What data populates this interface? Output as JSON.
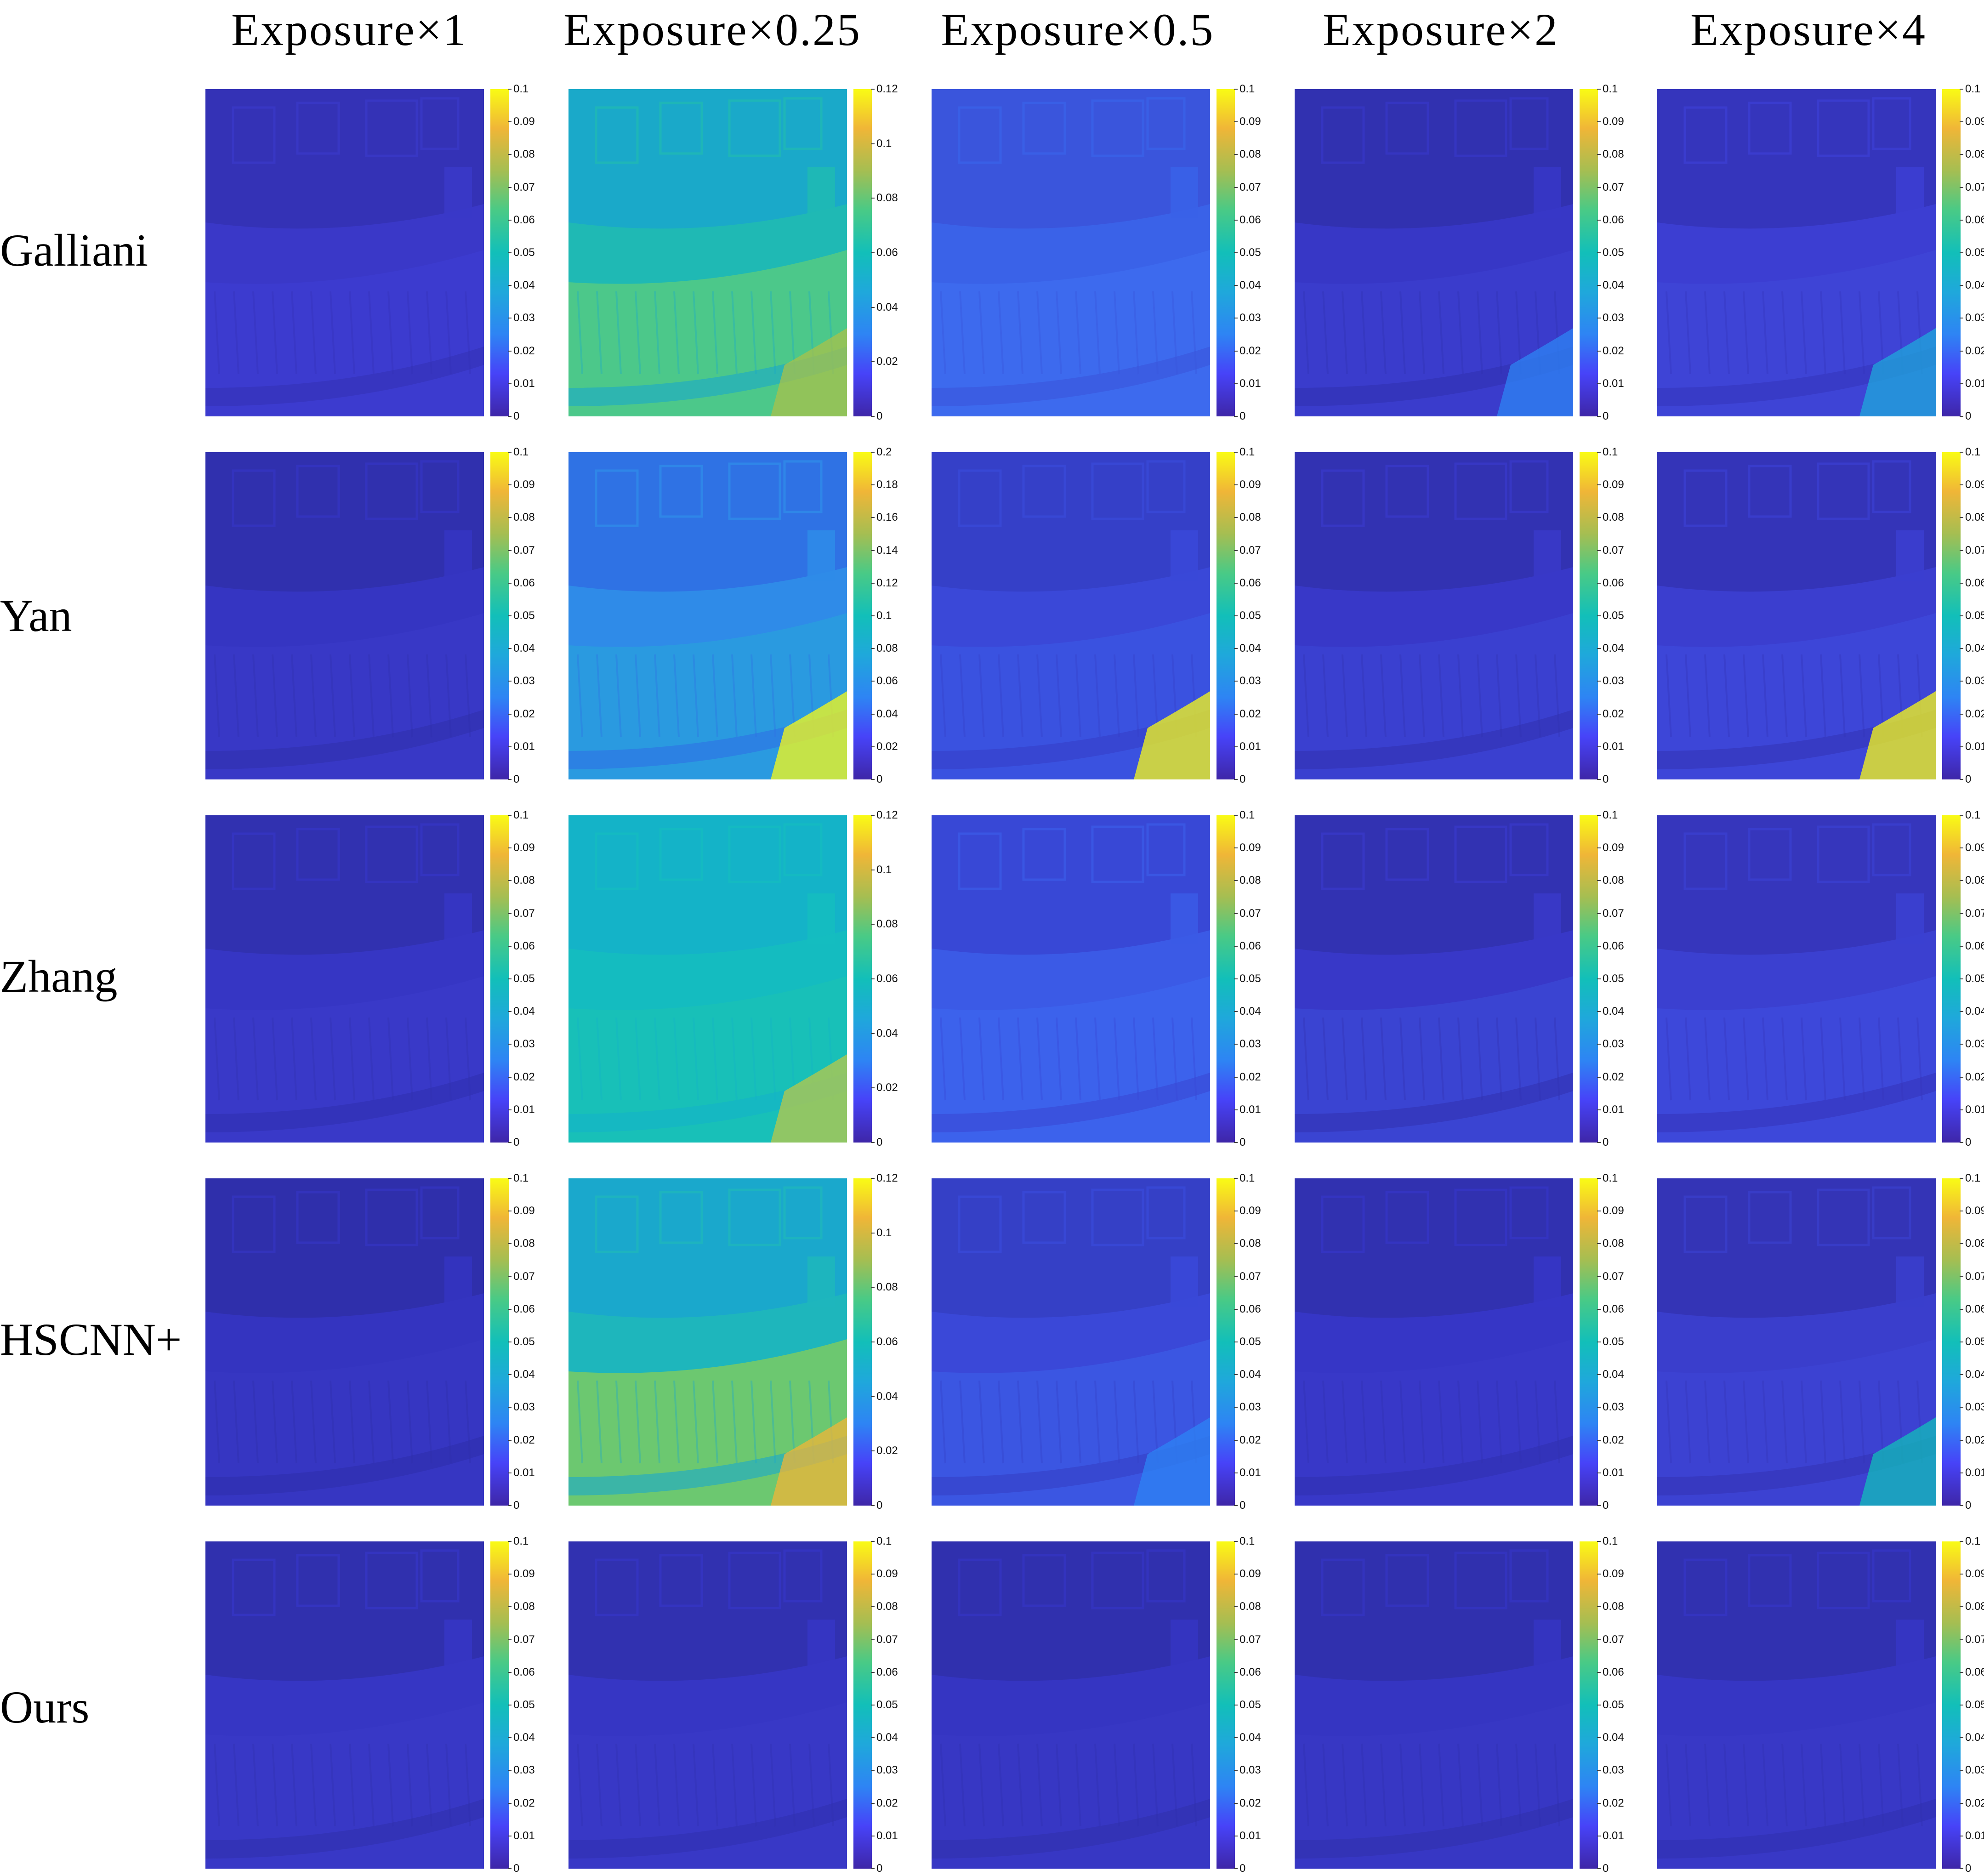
{
  "figure": {
    "columns": [
      "Exposure×1",
      "Exposure×0.25",
      "Exposure×0.5",
      "Exposure×2",
      "Exposure×4"
    ],
    "rows": [
      "Galliani",
      "Yan",
      "Zhang",
      "HSCNN+",
      "Ours"
    ],
    "colormap": [
      "#3e26a8",
      "#4743f8",
      "#2e84f4",
      "#1fa8db",
      "#12bfb9",
      "#49ca86",
      "#a5be52",
      "#f0b637",
      "#f9fb15"
    ],
    "colorbars": {
      "standard": [
        "0",
        "0.01",
        "0.02",
        "0.03",
        "0.04",
        "0.05",
        "0.06",
        "0.07",
        "0.08",
        "0.09",
        "0.1"
      ],
      "max_0_12": [
        "0",
        "0.02",
        "0.04",
        "0.06",
        "0.08",
        "0.1",
        "0.12"
      ],
      "max_0_2": [
        "0",
        "0.02",
        "0.04",
        "0.06",
        "0.08",
        "0.1",
        "0.12",
        "0.14",
        "0.16",
        "0.18",
        "0.2"
      ]
    },
    "panels": [
      [
        {
          "colorbar": "standard",
          "base": "#3a38c8",
          "wall": "#3432b6",
          "ground": "#3c3bcf",
          "highlight": ""
        },
        {
          "colorbar": "max_0_12",
          "base": "#1fb9b4",
          "wall": "#1aa9c9",
          "ground": "#4cc88a",
          "highlight": "#a8c24a"
        },
        {
          "colorbar": "standard",
          "base": "#3a62e8",
          "wall": "#3a55dc",
          "ground": "#3d6aee",
          "highlight": ""
        },
        {
          "colorbar": "standard",
          "base": "#3737c6",
          "wall": "#3131b0",
          "ground": "#3a3ccc",
          "highlight": "#2e84f4"
        },
        {
          "colorbar": "standard",
          "base": "#3c3ed2",
          "wall": "#3535bc",
          "ground": "#3e44d6",
          "highlight": "#1fa8db"
        }
      ],
      [
        {
          "colorbar": "standard",
          "base": "#3535c2",
          "wall": "#3030ae",
          "ground": "#3838c6",
          "highlight": ""
        },
        {
          "colorbar": "max_0_2",
          "base": "#2f8be8",
          "wall": "#2f72e4",
          "ground": "#2a9ae0",
          "highlight": "#f9fb15"
        },
        {
          "colorbar": "standard",
          "base": "#3a48d8",
          "wall": "#3540c8",
          "ground": "#3a52e0",
          "highlight": "#f9fb15"
        },
        {
          "colorbar": "standard",
          "base": "#3838c8",
          "wall": "#3232b2",
          "ground": "#3a40d0",
          "highlight": ""
        },
        {
          "colorbar": "standard",
          "base": "#3b3ecf",
          "wall": "#3434b8",
          "ground": "#3d46d8",
          "highlight": "#f9fb15"
        }
      ],
      [
        {
          "colorbar": "standard",
          "base": "#3636c4",
          "wall": "#3131b0",
          "ground": "#3939c8",
          "highlight": ""
        },
        {
          "colorbar": "max_0_12",
          "base": "#14bcc0",
          "wall": "#14b3c8",
          "ground": "#18c0b8",
          "highlight": "#b8c84a"
        },
        {
          "colorbar": "standard",
          "base": "#3b5ae6",
          "wall": "#3848d6",
          "ground": "#3c62ec",
          "highlight": ""
        },
        {
          "colorbar": "standard",
          "base": "#3838c8",
          "wall": "#3232b2",
          "ground": "#3a44d2",
          "highlight": ""
        },
        {
          "colorbar": "standard",
          "base": "#3b40d0",
          "wall": "#3636bc",
          "ground": "#3d48da",
          "highlight": ""
        }
      ],
      [
        {
          "colorbar": "standard",
          "base": "#3434c0",
          "wall": "#2f2fab",
          "ground": "#3636c2",
          "highlight": ""
        },
        {
          "colorbar": "max_0_12",
          "base": "#1eb6bc",
          "wall": "#1aa8cc",
          "ground": "#6cc870",
          "highlight": "#f0b637"
        },
        {
          "colorbar": "standard",
          "base": "#3a48d8",
          "wall": "#3540c6",
          "ground": "#3b56e2",
          "highlight": "#2e84f4"
        },
        {
          "colorbar": "standard",
          "base": "#3636c6",
          "wall": "#3131b0",
          "ground": "#3838c8",
          "highlight": ""
        },
        {
          "colorbar": "standard",
          "base": "#3a3ecc",
          "wall": "#3434b6",
          "ground": "#3c42d2",
          "highlight": "#12bfb9"
        }
      ],
      [
        {
          "colorbar": "standard",
          "base": "#3636c4",
          "wall": "#3030ae",
          "ground": "#3838c6",
          "highlight": ""
        },
        {
          "colorbar": "standard",
          "base": "#3636c4",
          "wall": "#3131b0",
          "ground": "#3838c6",
          "highlight": ""
        },
        {
          "colorbar": "standard",
          "base": "#3535c2",
          "wall": "#3030ae",
          "ground": "#3737c4",
          "highlight": ""
        },
        {
          "colorbar": "standard",
          "base": "#3535c2",
          "wall": "#3030ae",
          "ground": "#3737c4",
          "highlight": ""
        },
        {
          "colorbar": "standard",
          "base": "#3636c4",
          "wall": "#3131b0",
          "ground": "#3838c6",
          "highlight": ""
        }
      ]
    ]
  }
}
